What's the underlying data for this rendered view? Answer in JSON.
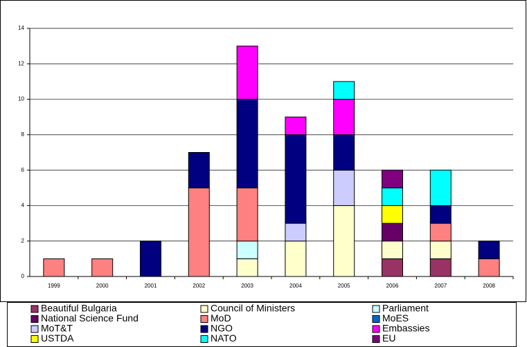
{
  "chart_data": {
    "type": "bar",
    "stacked": true,
    "categories": [
      "1999",
      "2000",
      "2001",
      "2002",
      "2003",
      "2004",
      "2005",
      "2006",
      "2007",
      "2008"
    ],
    "series": [
      {
        "name": "Beautiful Bulgaria",
        "color": "#993366",
        "values": [
          0,
          0,
          0,
          0,
          0,
          0,
          0,
          1,
          1,
          0
        ]
      },
      {
        "name": "Council of Ministers",
        "color": "#FFFFCC",
        "values": [
          0,
          0,
          0,
          0,
          1,
          2,
          4,
          1,
          1,
          0
        ]
      },
      {
        "name": "Parliament",
        "color": "#CCFFFF",
        "values": [
          0,
          0,
          0,
          0,
          1,
          0,
          0,
          0,
          0,
          0
        ]
      },
      {
        "name": "National Science Fund",
        "color": "#660066",
        "values": [
          0,
          0,
          0,
          0,
          0,
          0,
          0,
          1,
          0,
          0
        ]
      },
      {
        "name": "MoD",
        "color": "#FF8080",
        "values": [
          1,
          1,
          0,
          5,
          3,
          0,
          0,
          0,
          1,
          1
        ]
      },
      {
        "name": "MoES",
        "color": "#0066CC",
        "values": [
          0,
          0,
          0,
          0,
          0,
          0,
          0,
          0,
          0,
          0
        ]
      },
      {
        "name": "MoT&T",
        "color": "#CCCCFF",
        "values": [
          0,
          0,
          0,
          0,
          0,
          1,
          2,
          0,
          0,
          0
        ]
      },
      {
        "name": "NGO",
        "color": "#000080",
        "values": [
          0,
          0,
          2,
          2,
          5,
          5,
          2,
          0,
          1,
          1
        ]
      },
      {
        "name": "Embassies",
        "color": "#FF00FF",
        "values": [
          0,
          0,
          0,
          0,
          3,
          1,
          2,
          0,
          0,
          0
        ]
      },
      {
        "name": "USTDA",
        "color": "#FFFF00",
        "values": [
          0,
          0,
          0,
          0,
          0,
          0,
          0,
          1,
          0,
          0
        ]
      },
      {
        "name": "NATO",
        "color": "#00FFFF",
        "values": [
          0,
          0,
          0,
          0,
          0,
          0,
          1,
          1,
          2,
          0
        ]
      },
      {
        "name": "EU",
        "color": "#800080",
        "values": [
          0,
          0,
          0,
          0,
          0,
          0,
          0,
          1,
          0,
          0
        ]
      }
    ],
    "ylim": [
      0,
      14
    ],
    "yticks": [
      0,
      2,
      4,
      6,
      8,
      10,
      12,
      14
    ],
    "grid": true
  }
}
